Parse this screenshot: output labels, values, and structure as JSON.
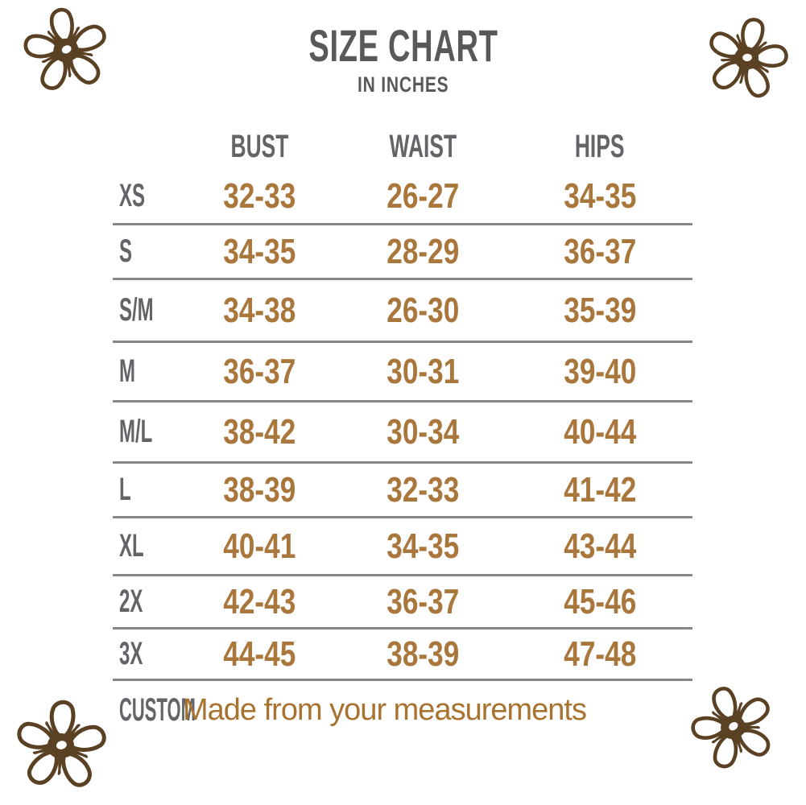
{
  "header": {
    "title": "SIZE CHART",
    "subtitle": "IN INCHES"
  },
  "chart_data": {
    "type": "table",
    "title": "SIZE CHART",
    "units": "inches",
    "columns": [
      "",
      "BUST",
      "WAIST",
      "HIPS"
    ],
    "rows": [
      {
        "label": "XS",
        "bust": "32-33",
        "waist": "26-27",
        "hips": "34-35"
      },
      {
        "label": "S",
        "bust": "34-35",
        "waist": "28-29",
        "hips": "36-37"
      },
      {
        "label": "S/M",
        "bust": "34-38",
        "waist": "26-30",
        "hips": "35-39"
      },
      {
        "label": "M",
        "bust": "36-37",
        "waist": "30-31",
        "hips": "39-40"
      },
      {
        "label": "M/L",
        "bust": "38-42",
        "waist": "30-34",
        "hips": "40-44"
      },
      {
        "label": "L",
        "bust": "38-39",
        "waist": "32-33",
        "hips": "41-42"
      },
      {
        "label": "XL",
        "bust": "40-41",
        "waist": "34-35",
        "hips": "43-44"
      },
      {
        "label": "2X",
        "bust": "42-43",
        "waist": "36-37",
        "hips": "45-46"
      },
      {
        "label": "3X",
        "bust": "44-45",
        "waist": "38-39",
        "hips": "47-48"
      }
    ],
    "custom_row": {
      "label": "CUSTOM",
      "note": "Made from your measurements"
    }
  },
  "colors": {
    "title_gray": "#58595b",
    "label_gray": "#636467",
    "value_brown": "#a9763b",
    "note_brown": "#a8722f",
    "divider_gray": "#85878a",
    "flower_brown": "#5a4124",
    "background": "#ffffff"
  },
  "decorations": {
    "flowers": [
      "top-left",
      "top-right",
      "bottom-left",
      "bottom-right"
    ]
  }
}
